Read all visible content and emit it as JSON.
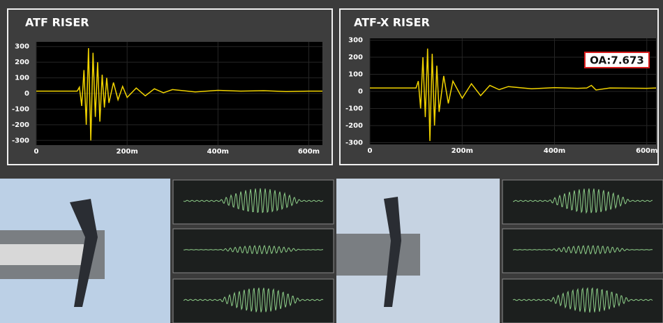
{
  "chart_data": [
    {
      "type": "line",
      "title": "ATF RISER",
      "x": [
        0,
        50,
        90,
        95,
        100,
        105,
        110,
        115,
        120,
        125,
        130,
        135,
        140,
        145,
        150,
        155,
        160,
        170,
        180,
        190,
        200,
        220,
        240,
        260,
        280,
        300,
        350,
        400,
        450,
        500,
        550,
        600,
        630
      ],
      "series": [
        {
          "color": "#f2d400",
          "values": [
            15,
            15,
            15,
            40,
            -80,
            150,
            -200,
            290,
            -300,
            260,
            -150,
            200,
            -180,
            120,
            -90,
            100,
            -60,
            70,
            -40,
            45,
            -25,
            35,
            -15,
            30,
            5,
            25,
            10,
            20,
            15,
            18,
            12,
            15,
            15
          ]
        }
      ],
      "xlim": [
        0,
        630
      ],
      "ylim": [
        -330,
        330
      ],
      "xticks": [
        0,
        {
          "value": 200,
          "label": "200m"
        },
        {
          "value": 400,
          "label": "400m"
        },
        {
          "value": 600,
          "label": "600m"
        }
      ],
      "yticks": [
        300,
        200,
        100,
        0,
        -100,
        -200,
        -300
      ],
      "grid": true
    },
    {
      "type": "line",
      "title": "ATF-X RISER",
      "x": [
        0,
        50,
        90,
        100,
        105,
        110,
        115,
        120,
        125,
        130,
        135,
        140,
        145,
        150,
        160,
        170,
        180,
        200,
        220,
        240,
        260,
        280,
        300,
        350,
        400,
        450,
        470,
        480,
        490,
        520,
        600,
        620
      ],
      "series": [
        {
          "color": "#f2d400",
          "values": [
            20,
            20,
            20,
            20,
            60,
            -100,
            200,
            -150,
            250,
            -290,
            220,
            -200,
            150,
            -120,
            90,
            -70,
            60,
            -40,
            45,
            -25,
            35,
            10,
            28,
            15,
            22,
            18,
            20,
            35,
            8,
            20,
            18,
            20
          ]
        }
      ],
      "xlim": [
        0,
        620
      ],
      "ylim": [
        -310,
        310
      ],
      "xticks": [
        0,
        {
          "value": 200,
          "label": "200m"
        },
        {
          "value": 400,
          "label": "400m"
        },
        {
          "value": 600,
          "label": "600m"
        }
      ],
      "yticks": [
        300,
        200,
        100,
        0,
        -100,
        -200,
        -300
      ],
      "grid": true,
      "annotation": "OA:7.673"
    }
  ]
}
